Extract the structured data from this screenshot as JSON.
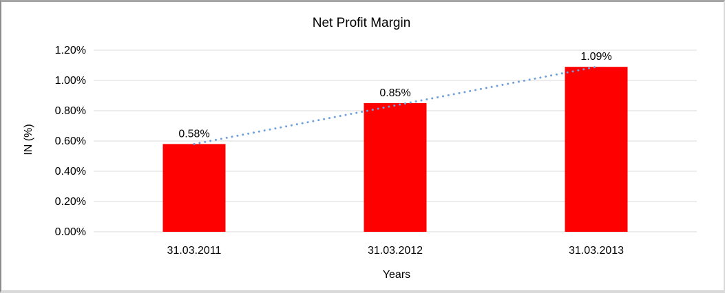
{
  "chart_data": {
    "type": "bar",
    "title": "Net Profit Margin",
    "xlabel": "Years",
    "ylabel": "IN (%)",
    "categories": [
      "31.03.2011",
      "31.03.2012",
      "31.03.2013"
    ],
    "values": [
      0.58,
      0.85,
      1.09
    ],
    "data_labels": [
      "0.58%",
      "0.85%",
      "1.09%"
    ],
    "ylim": [
      0,
      1.2
    ],
    "ytick_step": 0.2,
    "ytick_labels": [
      "0.00%",
      "0.20%",
      "0.40%",
      "0.60%",
      "0.80%",
      "1.00%",
      "1.20%"
    ],
    "grid": true,
    "legend": "none",
    "bar_color": "#FF0000",
    "gridline_color": "#D9D9D9",
    "text_color": "#000000",
    "trendline": {
      "type": "linear",
      "style": "dotted",
      "color": "#6FA0DC",
      "from_value": 0.58,
      "to_value": 1.09
    }
  }
}
